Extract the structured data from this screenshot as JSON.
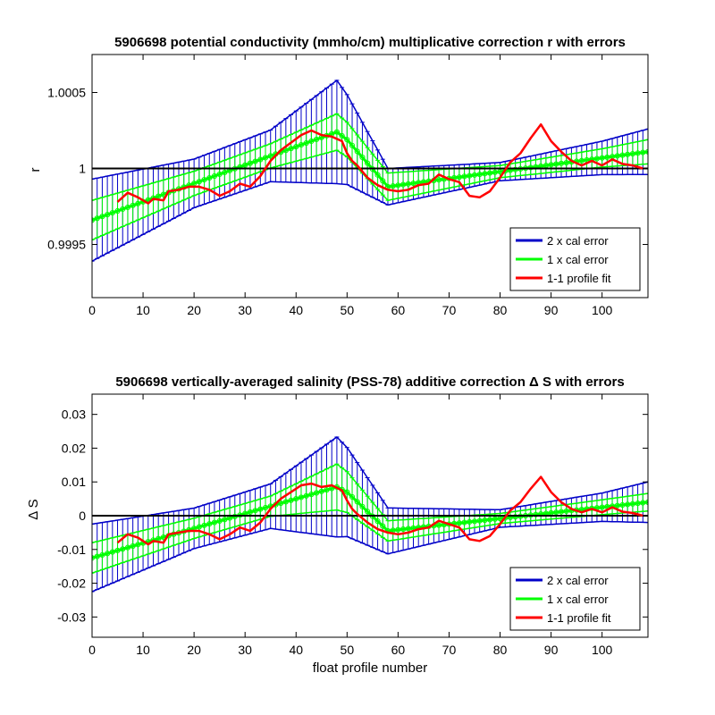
{
  "colors": {
    "blue": "#0000c8",
    "green": "#00ff00",
    "red": "#ff0000",
    "zero": "#000000"
  },
  "chart_data": [
    {
      "type": "line",
      "title": "5906698 potential conductivity (mmho/cm) multiplicative correction r with errors",
      "xlabel": "",
      "ylabel": "r",
      "xlim": [
        0,
        109
      ],
      "ylim": [
        0.99915,
        1.00075
      ],
      "xticks": [
        0,
        10,
        20,
        30,
        40,
        50,
        60,
        70,
        80,
        90,
        100
      ],
      "yticks": [
        0.9995,
        1,
        1.0005
      ],
      "yticklabels": [
        "0.9995",
        "1",
        "1.0005"
      ],
      "zero_line": 1,
      "legend": {
        "position": "bottom-right",
        "entries": [
          "2 x cal error",
          "1 x cal error",
          "1-1 profile fit"
        ]
      },
      "fit_knots": [
        [
          0,
          0.99966
        ],
        [
          48,
          1.00024
        ],
        [
          50,
          1.00019
        ],
        [
          58,
          0.99988
        ],
        [
          109,
          1.00011
        ]
      ],
      "cal1_knots": [
        [
          0,
          0.00013
        ],
        [
          20,
          8e-05
        ],
        [
          35,
          8e-05
        ],
        [
          48,
          0.00012
        ],
        [
          58,
          9e-05
        ],
        [
          80,
          4e-05
        ],
        [
          100,
          6e-05
        ],
        [
          109,
          8e-05
        ]
      ],
      "cal2_knots": [
        [
          0,
          0.00027
        ],
        [
          20,
          0.00016
        ],
        [
          35,
          0.00017
        ],
        [
          48,
          0.00034
        ],
        [
          58,
          0.00012
        ],
        [
          80,
          6e-05
        ],
        [
          100,
          0.00011
        ],
        [
          109,
          0.00015
        ]
      ],
      "profile_fit": {
        "x": [
          5,
          7,
          9,
          11,
          12,
          14,
          15,
          17,
          19,
          21,
          23,
          25,
          27,
          29,
          31,
          33,
          35,
          37,
          39,
          41,
          43,
          45,
          47,
          49,
          50,
          51,
          52,
          54,
          56,
          58,
          60,
          62,
          64,
          66,
          68,
          70,
          72,
          74,
          76,
          78,
          80,
          82,
          84,
          86,
          88,
          90,
          92,
          94,
          96,
          98,
          100,
          102,
          104,
          106,
          108
        ],
        "y": [
          0.99978,
          0.99984,
          0.99981,
          0.99977,
          0.9998,
          0.99979,
          0.99985,
          0.99986,
          0.99988,
          0.99988,
          0.99986,
          0.99982,
          0.99985,
          0.9999,
          0.99988,
          0.99995,
          1.00005,
          1.00012,
          1.00017,
          1.00022,
          1.00025,
          1.00022,
          1.00021,
          1.00018,
          1.0001,
          1.00005,
          1.00002,
          0.99994,
          0.99989,
          0.99986,
          0.99985,
          0.99986,
          0.99989,
          0.9999,
          0.99996,
          0.99993,
          0.99991,
          0.99982,
          0.99981,
          0.99985,
          0.99994,
          1.00004,
          1.0001,
          1.0002,
          1.00029,
          1.00018,
          1.00011,
          1.00005,
          1.00002,
          1.00005,
          1.00002,
          1.00006,
          1.00003,
          1.00002,
          1
        ]
      }
    },
    {
      "type": "line",
      "title": "5906698 vertically-averaged salinity (PSS-78) additive correction Δ S with errors",
      "xlabel": "float profile number",
      "ylabel": "Δ S",
      "xlim": [
        0,
        109
      ],
      "ylim": [
        -0.036,
        0.036
      ],
      "xticks": [
        0,
        10,
        20,
        30,
        40,
        50,
        60,
        70,
        80,
        90,
        100
      ],
      "yticks": [
        -0.03,
        -0.02,
        -0.01,
        0,
        0.01,
        0.02,
        0.03
      ],
      "yticklabels": [
        "-0.03",
        "-0.02",
        "-0.01",
        "0",
        "0.01",
        "0.02",
        "0.03"
      ],
      "zero_line": 0,
      "legend": {
        "position": "bottom-right",
        "entries": [
          "2 x cal error",
          "1 x cal error",
          "1-1 profile fit"
        ]
      },
      "fit_knots": [
        [
          0,
          -0.0125
        ],
        [
          48,
          0.0085
        ],
        [
          50,
          0.007
        ],
        [
          58,
          -0.0045
        ],
        [
          109,
          0.004
        ]
      ],
      "cal1_knots": [
        [
          0,
          0.0045
        ],
        [
          20,
          0.003
        ],
        [
          35,
          0.003
        ],
        [
          48,
          0.0068
        ],
        [
          58,
          0.003
        ],
        [
          80,
          0.0015
        ],
        [
          100,
          0.0022
        ],
        [
          109,
          0.0026
        ]
      ],
      "cal2_knots": [
        [
          0,
          0.01
        ],
        [
          20,
          0.006
        ],
        [
          35,
          0.0066
        ],
        [
          48,
          0.0148
        ],
        [
          58,
          0.0068
        ],
        [
          80,
          0.0026
        ],
        [
          100,
          0.0042
        ],
        [
          109,
          0.006
        ]
      ],
      "profile_fit": {
        "x": [
          5,
          7,
          9,
          11,
          12,
          14,
          15,
          17,
          19,
          21,
          23,
          25,
          27,
          29,
          31,
          33,
          35,
          37,
          39,
          41,
          43,
          45,
          47,
          49,
          50,
          51,
          52,
          54,
          56,
          58,
          60,
          62,
          64,
          66,
          68,
          70,
          72,
          74,
          76,
          78,
          80,
          82,
          84,
          86,
          88,
          90,
          92,
          94,
          96,
          98,
          100,
          102,
          104,
          106,
          108
        ],
        "y": [
          -0.008,
          -0.0055,
          -0.0065,
          -0.0085,
          -0.0075,
          -0.008,
          -0.0055,
          -0.005,
          -0.0045,
          -0.0045,
          -0.0055,
          -0.007,
          -0.0055,
          -0.0035,
          -0.0045,
          -0.002,
          0.002,
          0.005,
          0.007,
          0.009,
          0.0095,
          0.0085,
          0.009,
          0.0075,
          0.0045,
          0.002,
          0.0005,
          -0.002,
          -0.004,
          -0.005,
          -0.0055,
          -0.005,
          -0.004,
          -0.0035,
          -0.0015,
          -0.0025,
          -0.0035,
          -0.007,
          -0.0075,
          -0.006,
          -0.0025,
          0.0015,
          0.004,
          0.008,
          0.0115,
          0.007,
          0.004,
          0.002,
          0.001,
          0.002,
          0.001,
          0.0025,
          0.0012,
          0.0008,
          0
        ]
      }
    }
  ]
}
